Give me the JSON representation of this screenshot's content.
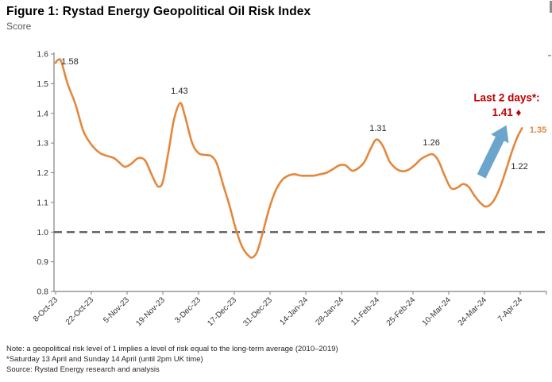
{
  "header": {
    "title": "Figure 1: Rystad Energy Geopolitical Oil Risk Index",
    "subtitle": "Score"
  },
  "notes": {
    "line1": "Note: a geopolitical risk level of 1 implies a level of risk equal to the long-term average (2010–2019)",
    "line2": "*Saturday 13 April and Sunday 14 April (until 2pm UK time)",
    "line3": "Source: Rystad Energy research and analysis"
  },
  "chart_data": {
    "type": "line",
    "title": "Figure 1: Rystad Energy Geopolitical Oil Risk Index",
    "ylabel": "Score",
    "xlabel": "",
    "ylim": [
      0.8,
      1.6
    ],
    "grid": false,
    "yticks": [
      "1.6",
      "1.5",
      "1.4",
      "1.3",
      "1.2",
      "1.1",
      "1.0",
      "0.9",
      "0.8"
    ],
    "xticks": [
      "8-Oct-23",
      "22-Oct-23",
      "5-Nov-23",
      "19-Nov-23",
      "3-Dec-23",
      "17-Dec-23",
      "31-Dec-23",
      "14-Jan-24",
      "28-Jan-24",
      "11-Feb-24",
      "25-Feb-24",
      "10-Mar-24",
      "24-Mar-24",
      "7-Apr-24"
    ],
    "days_per_tick": 14,
    "baseline": {
      "value": 1.0,
      "style": "dashed",
      "color": "#595959"
    },
    "axis_color": "#808080",
    "tick_label_color": "#333333",
    "series": [
      {
        "name": "Geopolitical Oil Risk Index",
        "color": "#E2883E",
        "points": [
          [
            0,
            1.57
          ],
          [
            0.9,
            1.58
          ],
          [
            2.2,
            1.575
          ],
          [
            4.7,
            1.5
          ],
          [
            7.8,
            1.43
          ],
          [
            10.9,
            1.34
          ],
          [
            14,
            1.295
          ],
          [
            17.1,
            1.268
          ],
          [
            19.6,
            1.258
          ],
          [
            22.7,
            1.25
          ],
          [
            24.9,
            1.235
          ],
          [
            27.1,
            1.22
          ],
          [
            29.6,
            1.23
          ],
          [
            31.7,
            1.246
          ],
          [
            33.3,
            1.25
          ],
          [
            35.2,
            1.24
          ],
          [
            37.3,
            1.2
          ],
          [
            39.2,
            1.165
          ],
          [
            40.4,
            1.153
          ],
          [
            42,
            1.17
          ],
          [
            44.2,
            1.27
          ],
          [
            46.4,
            1.38
          ],
          [
            48.8,
            1.435
          ],
          [
            50.7,
            1.39
          ],
          [
            53.5,
            1.3
          ],
          [
            56,
            1.266
          ],
          [
            58.5,
            1.26
          ],
          [
            61,
            1.256
          ],
          [
            63.2,
            1.23
          ],
          [
            65.6,
            1.16
          ],
          [
            68.1,
            1.09
          ],
          [
            70.6,
            1.01
          ],
          [
            73.1,
            0.95
          ],
          [
            75.6,
            0.92
          ],
          [
            77.2,
            0.915
          ],
          [
            79,
            0.935
          ],
          [
            81.2,
            1.0
          ],
          [
            83.7,
            1.08
          ],
          [
            86.2,
            1.14
          ],
          [
            88.7,
            1.175
          ],
          [
            91.1,
            1.19
          ],
          [
            93.6,
            1.195
          ],
          [
            96.1,
            1.19
          ],
          [
            98.6,
            1.19
          ],
          [
            101.1,
            1.19
          ],
          [
            103.6,
            1.195
          ],
          [
            106.1,
            1.2
          ],
          [
            108.6,
            1.212
          ],
          [
            111.1,
            1.225
          ],
          [
            113.6,
            1.225
          ],
          [
            116.1,
            1.207
          ],
          [
            118.5,
            1.215
          ],
          [
            121,
            1.237
          ],
          [
            123.5,
            1.283
          ],
          [
            125.7,
            1.312
          ],
          [
            128.2,
            1.29
          ],
          [
            130.7,
            1.24
          ],
          [
            133.2,
            1.215
          ],
          [
            135.7,
            1.205
          ],
          [
            138.2,
            1.21
          ],
          [
            140.7,
            1.226
          ],
          [
            143.1,
            1.246
          ],
          [
            145.6,
            1.258
          ],
          [
            147.8,
            1.262
          ],
          [
            150,
            1.24
          ],
          [
            152.4,
            1.19
          ],
          [
            154.9,
            1.148
          ],
          [
            157.4,
            1.15
          ],
          [
            159.6,
            1.162
          ],
          [
            161.8,
            1.152
          ],
          [
            164.3,
            1.12
          ],
          [
            166.8,
            1.095
          ],
          [
            168.7,
            1.086
          ],
          [
            171.1,
            1.1
          ],
          [
            173.6,
            1.14
          ],
          [
            176.1,
            1.2
          ],
          [
            178.6,
            1.268
          ],
          [
            180.8,
            1.318
          ],
          [
            182.7,
            1.35
          ]
        ]
      }
    ],
    "point_labels": [
      {
        "text": "1.58",
        "d": 5.6,
        "v": 1.576
      },
      {
        "text": "1.43",
        "d": 48.5,
        "v": 1.477
      },
      {
        "text": "1.31",
        "d": 126.3,
        "v": 1.351
      },
      {
        "text": "1.26",
        "d": 147.2,
        "v": 1.303
      },
      {
        "text": "1.22",
        "d": 181.7,
        "v": 1.223
      },
      {
        "text": "1.35",
        "d": 189.0,
        "v": 1.346,
        "color": "#E2883E",
        "bold": true
      }
    ],
    "callout": {
      "line1": "Last 2 days*:",
      "line2": "1.41",
      "diamond": "♦",
      "color": "#C00000",
      "d": 176.7,
      "v_line1": 1.452,
      "v_line2": 1.402
    },
    "arrow": {
      "from": {
        "d": 166.8,
        "v": 1.188
      },
      "to": {
        "d": 176.6,
        "v": 1.36
      },
      "color": "#6BA5CC"
    },
    "legend": null
  }
}
